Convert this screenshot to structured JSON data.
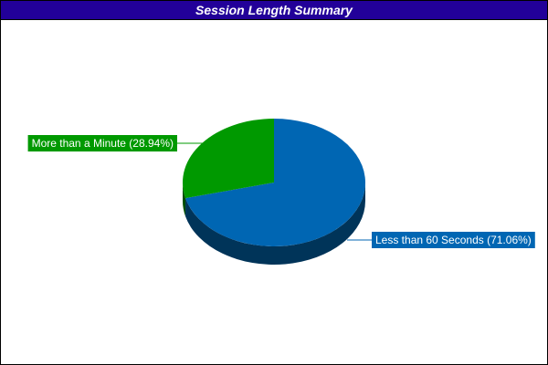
{
  "chart_data": {
    "type": "pie",
    "title": "Session Length Summary",
    "style": "3d",
    "slices": [
      {
        "label": "Less than 60 Seconds (71.06%)",
        "value": 71.06,
        "color": "#0066b3",
        "side_color": "#003459"
      },
      {
        "label": "More than a Minute (28.94%)",
        "value": 28.94,
        "color": "#009900",
        "side_color": "#004d00"
      }
    ]
  }
}
